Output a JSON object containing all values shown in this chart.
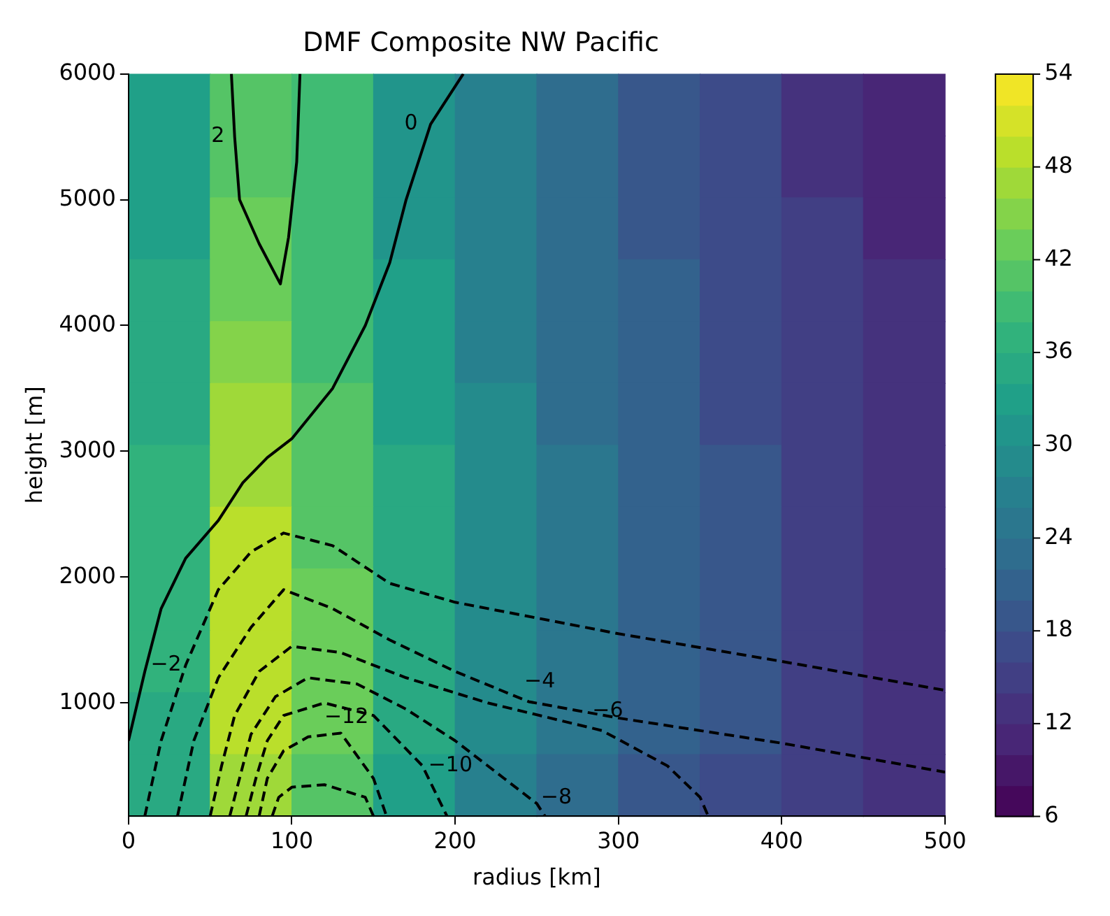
{
  "chart_data": [
    {
      "type": "heatmap",
      "categories": [
        null,
        null,
        null,
        null,
        null,
        null,
        null,
        null,
        null,
        null
      ],
      "y_categories": [
        null,
        null,
        null,
        null,
        null,
        null,
        null,
        null,
        null,
        null,
        null,
        null
      ],
      "cells": [
        [
          33,
          41,
          39,
          31,
          27,
          23,
          19,
          17,
          13,
          11
        ],
        [
          33,
          41,
          39,
          31,
          27,
          23,
          19,
          17,
          13,
          11
        ],
        [
          33,
          43,
          39,
          31,
          27,
          23,
          19,
          17,
          15,
          11
        ],
        [
          35,
          43,
          39,
          33,
          27,
          23,
          21,
          17,
          15,
          13
        ],
        [
          35,
          45,
          39,
          33,
          27,
          23,
          21,
          17,
          15,
          13
        ],
        [
          35,
          47,
          41,
          33,
          29,
          23,
          21,
          17,
          15,
          13
        ],
        [
          37,
          47,
          41,
          35,
          29,
          25,
          21,
          19,
          15,
          13
        ],
        [
          37,
          49,
          41,
          35,
          29,
          25,
          21,
          19,
          15,
          13
        ],
        [
          37,
          49,
          43,
          35,
          29,
          25,
          21,
          19,
          15,
          13
        ],
        [
          37,
          49,
          43,
          35,
          29,
          25,
          21,
          19,
          15,
          13
        ],
        [
          35,
          49,
          43,
          35,
          29,
          25,
          21,
          19,
          15,
          13
        ],
        [
          35,
          47,
          41,
          33,
          27,
          23,
          19,
          17,
          15,
          13
        ]
      ],
      "clim": [
        6,
        54
      ],
      "cticks": [
        6,
        12,
        18,
        24,
        30,
        36,
        42,
        48,
        54
      ]
    },
    {
      "type": "line",
      "title": "DMF Composite NW Pacific",
      "xlabel": "radius [km]",
      "ylabel": "height [m]",
      "xlim": [
        0,
        500
      ],
      "xticks": [
        0,
        100,
        200,
        300,
        400,
        500
      ],
      "ylim": [
        100,
        6000
      ],
      "yticks": [
        1000,
        2000,
        3000,
        4000,
        5000,
        6000
      ],
      "series": [
        {
          "name": "2",
          "color": "#000000",
          "line_style": "solid",
          "x": [
            63,
            65,
            68,
            80,
            93,
            98,
            103,
            105
          ],
          "values": [
            6000,
            5500,
            5000,
            4650,
            4330,
            4700,
            5300,
            6000
          ]
        },
        {
          "name": "0",
          "color": "#000000",
          "line_style": "solid",
          "x": [
            0,
            10,
            20,
            35,
            55,
            70,
            85,
            100,
            125,
            145,
            160,
            170,
            185,
            205
          ],
          "values": [
            700,
            1250,
            1750,
            2150,
            2450,
            2750,
            2950,
            3100,
            3500,
            4000,
            4500,
            5000,
            5600,
            6000
          ]
        },
        {
          "name": "−2",
          "color": "#000000",
          "line_style": "dashed",
          "x": [
            10,
            20,
            35,
            55,
            75,
            95,
            125,
            160,
            200,
            300,
            400,
            500
          ],
          "values": [
            100,
            700,
            1300,
            1900,
            2200,
            2350,
            2250,
            1950,
            1800,
            1550,
            1330,
            1100
          ]
        },
        {
          "name": "−4",
          "color": "#000000",
          "line_style": "dashed",
          "x": [
            30,
            40,
            55,
            75,
            95,
            125,
            160,
            200,
            245,
            300,
            400,
            500
          ],
          "values": [
            100,
            700,
            1200,
            1600,
            1900,
            1750,
            1500,
            1250,
            1010,
            880,
            680,
            450
          ]
        },
        {
          "name": "−6",
          "color": "#000000",
          "line_style": "dashed",
          "x": [
            50,
            57,
            65,
            80,
            100,
            130,
            170,
            220,
            290,
            330,
            350,
            355
          ],
          "values": [
            100,
            500,
            900,
            1250,
            1450,
            1400,
            1200,
            1000,
            780,
            500,
            250,
            100
          ]
        },
        {
          "name": "−8",
          "color": "#000000",
          "line_style": "dashed",
          "x": [
            62,
            68,
            75,
            90,
            110,
            140,
            170,
            200,
            230,
            250,
            255
          ],
          "values": [
            100,
            400,
            750,
            1050,
            1200,
            1150,
            950,
            700,
            400,
            200,
            100
          ]
        },
        {
          "name": "−10",
          "color": "#000000",
          "line_style": "dashed",
          "x": [
            72,
            78,
            85,
            95,
            120,
            150,
            180,
            195
          ],
          "values": [
            100,
            400,
            700,
            900,
            1000,
            900,
            500,
            100
          ]
        },
        {
          "name": "−12",
          "color": "#000000",
          "line_style": "dashed",
          "x": [
            80,
            85,
            95,
            110,
            130,
            150,
            158
          ],
          "values": [
            100,
            400,
            620,
            730,
            760,
            400,
            100
          ]
        },
        {
          "color": "#000000",
          "line_style": "dashed",
          "x": [
            88,
            92,
            100,
            120,
            145,
            150
          ],
          "values": [
            100,
            250,
            330,
            350,
            250,
            100
          ]
        }
      ],
      "grid": false,
      "legend": false
    }
  ]
}
